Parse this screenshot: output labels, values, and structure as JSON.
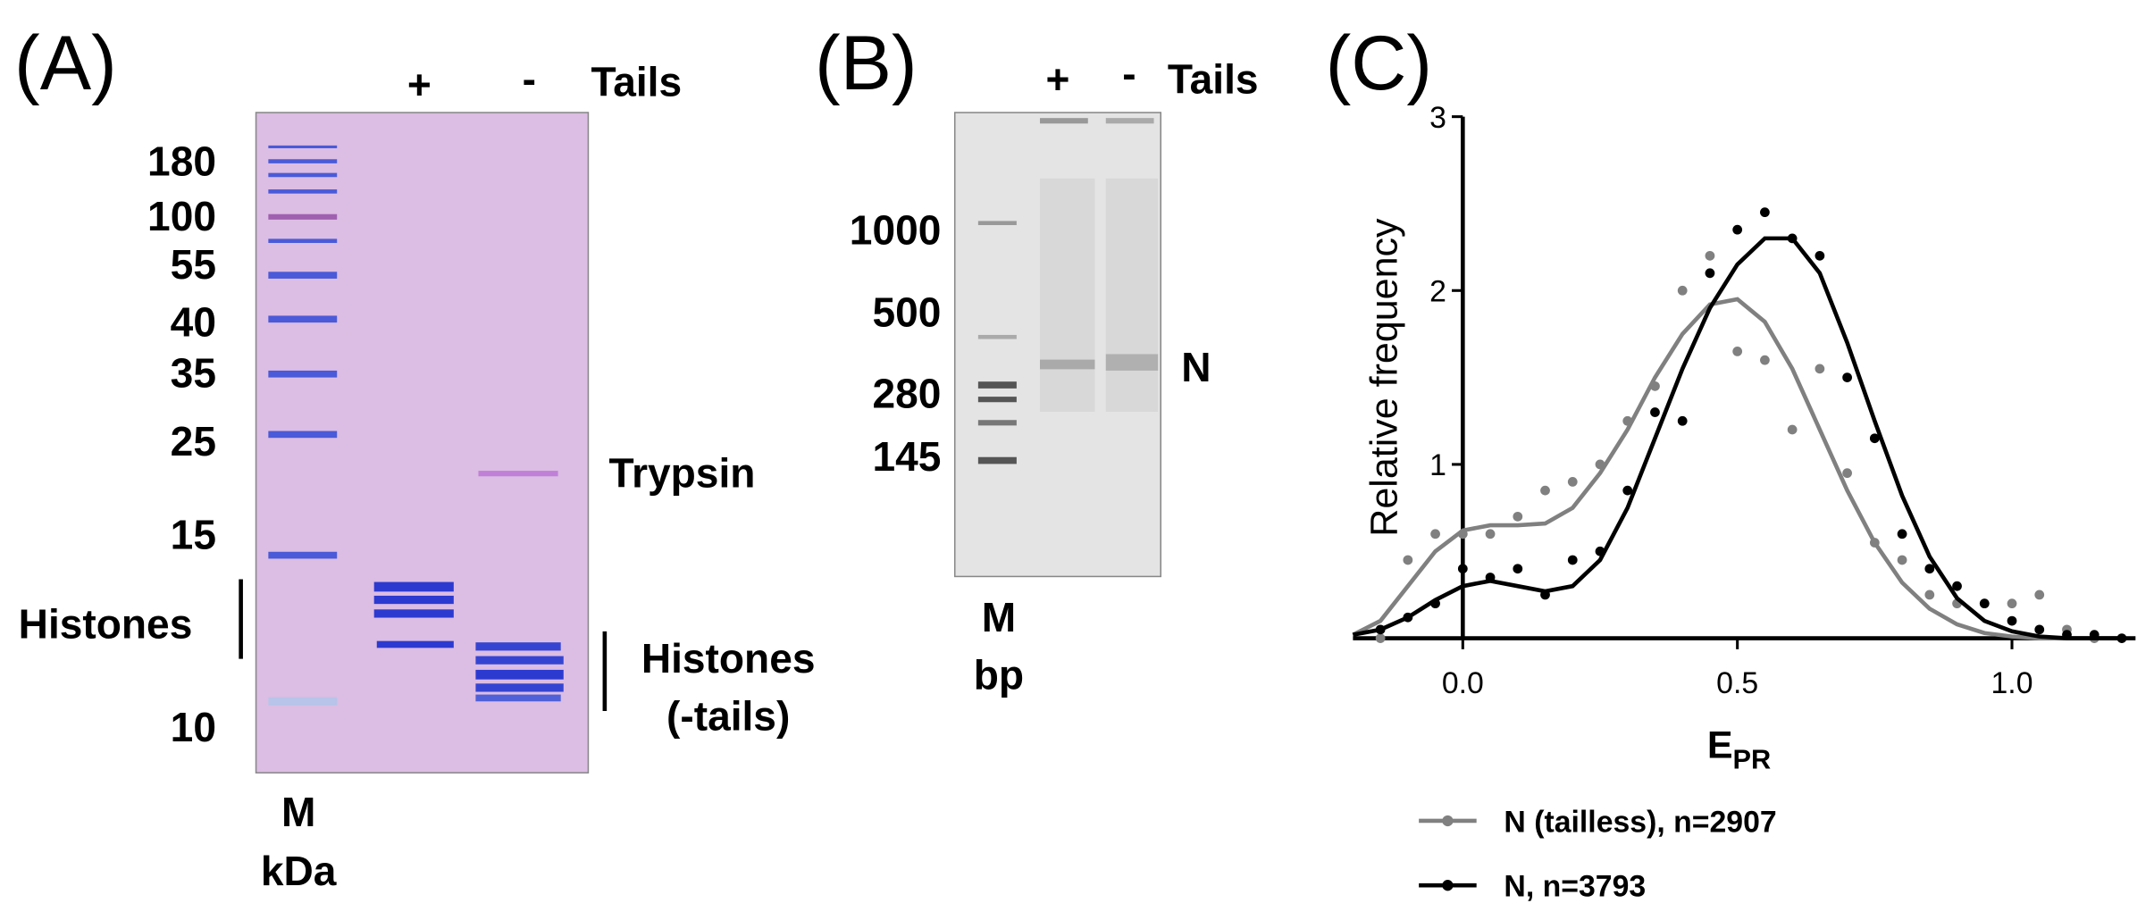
{
  "panel_a": {
    "label": "(A)",
    "lane_plus": "+",
    "lane_minus": "-",
    "lanes_title": "Tails",
    "markers": [
      "180",
      "100",
      "55",
      "40",
      "35",
      "25",
      "15",
      "10"
    ],
    "histones": "Histones",
    "trypsin": "Trypsin",
    "histones_tailless": [
      "Histones",
      "(-tails)"
    ],
    "lane_m": "M",
    "unit": "kDa"
  },
  "panel_b": {
    "label": "(B)",
    "lane_plus": "+",
    "lane_minus": "-",
    "lanes_title": "Tails",
    "markers": [
      "1000",
      "500",
      "280",
      "145"
    ],
    "band": "N",
    "lane_m": "M",
    "unit": "bp"
  },
  "chart_data": {
    "type": "scatter",
    "panel_label": "(C)",
    "ylabel": "Relative frequency",
    "xlabel": "E",
    "xlabel_subscript": "PR",
    "xlim": [
      -0.2,
      1.2
    ],
    "ylim": [
      0,
      3
    ],
    "xticks": [
      {
        "value": 0,
        "label": "0.0"
      },
      0.5,
      {
        "value": 1,
        "label": "1.0"
      }
    ],
    "yticks": [
      1,
      2,
      3
    ],
    "series": [
      {
        "name": "N (tailless), n=2907",
        "color": "#808080",
        "x": [
          -0.15,
          -0.1,
          -0.05,
          0,
          0.05,
          0.1,
          0.15,
          0.2,
          0.25,
          0.3,
          0.35,
          0.4,
          0.45,
          0.5,
          0.55,
          0.6,
          0.65,
          0.7,
          0.75,
          0.8,
          0.85,
          0.9,
          0.95,
          1.0,
          1.05,
          1.1,
          1.15
        ],
        "values": [
          0.0,
          0.45,
          0.6,
          0.6,
          0.6,
          0.7,
          0.85,
          0.9,
          1.0,
          1.25,
          1.45,
          2.0,
          2.2,
          1.65,
          1.6,
          1.2,
          1.55,
          0.95,
          0.55,
          0.45,
          0.25,
          0.2,
          0.2,
          0.2,
          0.25,
          0.05,
          0.0
        ],
        "fit_x": [
          -0.2,
          -0.15,
          -0.1,
          -0.05,
          0,
          0.05,
          0.1,
          0.15,
          0.2,
          0.25,
          0.3,
          0.35,
          0.4,
          0.45,
          0.5,
          0.55,
          0.6,
          0.65,
          0.7,
          0.75,
          0.8,
          0.85,
          0.9,
          0.95,
          1.0,
          1.05,
          1.1,
          1.2
        ],
        "fit_values": [
          0.02,
          0.1,
          0.3,
          0.5,
          0.62,
          0.65,
          0.65,
          0.66,
          0.75,
          0.95,
          1.2,
          1.5,
          1.75,
          1.92,
          1.95,
          1.82,
          1.55,
          1.2,
          0.85,
          0.55,
          0.32,
          0.17,
          0.08,
          0.03,
          0.01,
          0,
          0,
          0
        ]
      },
      {
        "name": "N, n=3793",
        "color": "#000000",
        "x": [
          -0.15,
          -0.1,
          -0.05,
          0,
          0.05,
          0.1,
          0.15,
          0.2,
          0.25,
          0.3,
          0.35,
          0.4,
          0.45,
          0.5,
          0.55,
          0.6,
          0.65,
          0.7,
          0.75,
          0.8,
          0.85,
          0.9,
          0.95,
          1.0,
          1.05,
          1.1,
          1.15,
          1.2
        ],
        "values": [
          0.05,
          0.12,
          0.2,
          0.4,
          0.35,
          0.4,
          0.25,
          0.45,
          0.5,
          0.85,
          1.3,
          1.25,
          2.1,
          2.35,
          2.45,
          2.3,
          2.2,
          1.5,
          1.15,
          0.6,
          0.4,
          0.3,
          0.2,
          0.1,
          0.05,
          0.02,
          0.02,
          0.0
        ],
        "fit_x": [
          -0.2,
          -0.15,
          -0.1,
          -0.05,
          0,
          0.05,
          0.1,
          0.15,
          0.2,
          0.25,
          0.3,
          0.35,
          0.4,
          0.45,
          0.5,
          0.55,
          0.6,
          0.65,
          0.7,
          0.75,
          0.8,
          0.85,
          0.9,
          0.95,
          1.0,
          1.05,
          1.1,
          1.2
        ],
        "fit_values": [
          0.02,
          0.05,
          0.12,
          0.22,
          0.3,
          0.33,
          0.3,
          0.27,
          0.3,
          0.45,
          0.75,
          1.15,
          1.55,
          1.9,
          2.15,
          2.3,
          2.3,
          2.1,
          1.7,
          1.25,
          0.82,
          0.47,
          0.23,
          0.1,
          0.04,
          0.01,
          0,
          0
        ]
      }
    ]
  }
}
